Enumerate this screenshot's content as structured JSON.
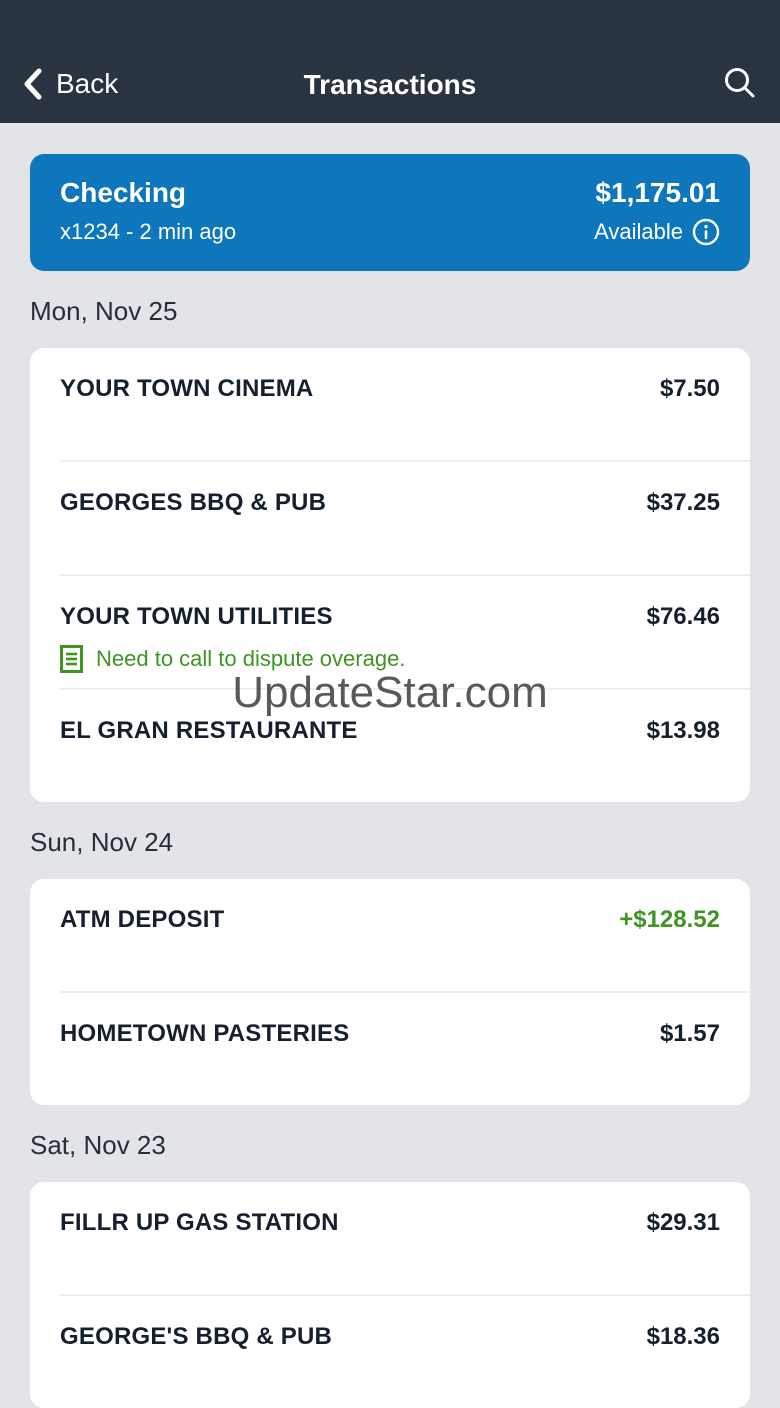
{
  "header": {
    "back_label": "Back",
    "title": "Transactions",
    "icons": [
      "back-chevron-icon",
      "search-icon"
    ]
  },
  "account": {
    "name": "Checking",
    "masked_and_updated": "x1234 - 2 min ago",
    "balance": "$1,175.01",
    "available_label": "Available",
    "info_icon": "info-icon"
  },
  "sections": [
    {
      "date": "Mon, Nov 25",
      "transactions": [
        {
          "name": "YOUR TOWN CINEMA",
          "amount": "$7.50",
          "credit": false
        },
        {
          "name": "GEORGES BBQ & PUB",
          "amount": "$37.25",
          "credit": false
        },
        {
          "name": "YOUR TOWN UTILITIES",
          "amount": "$76.46",
          "credit": false,
          "note": "Need to call to dispute overage.",
          "note_icon": "memo-icon"
        },
        {
          "name": "EL GRAN RESTAURANTE",
          "amount": "$13.98",
          "credit": false
        }
      ]
    },
    {
      "date": "Sun, Nov 24",
      "transactions": [
        {
          "name": "ATM DEPOSIT",
          "amount": "+$128.52",
          "credit": true
        },
        {
          "name": "HOMETOWN PASTERIES",
          "amount": "$1.57",
          "credit": false
        }
      ]
    },
    {
      "date": "Sat, Nov 23",
      "transactions": [
        {
          "name": "FILLR UP GAS STATION",
          "amount": "$29.31",
          "credit": false
        },
        {
          "name": "GEORGE'S BBQ & PUB",
          "amount": "$18.36",
          "credit": false
        }
      ]
    }
  ],
  "watermark": {
    "text": "UpdateStar.com"
  },
  "colors": {
    "navbar_bg": "#2a3340",
    "page_bg": "#e2e4e8",
    "account_card_bg": "#0e76bb",
    "text_dark": "#15202e",
    "credit_green": "#3f9422",
    "note_green": "#3f9422"
  }
}
